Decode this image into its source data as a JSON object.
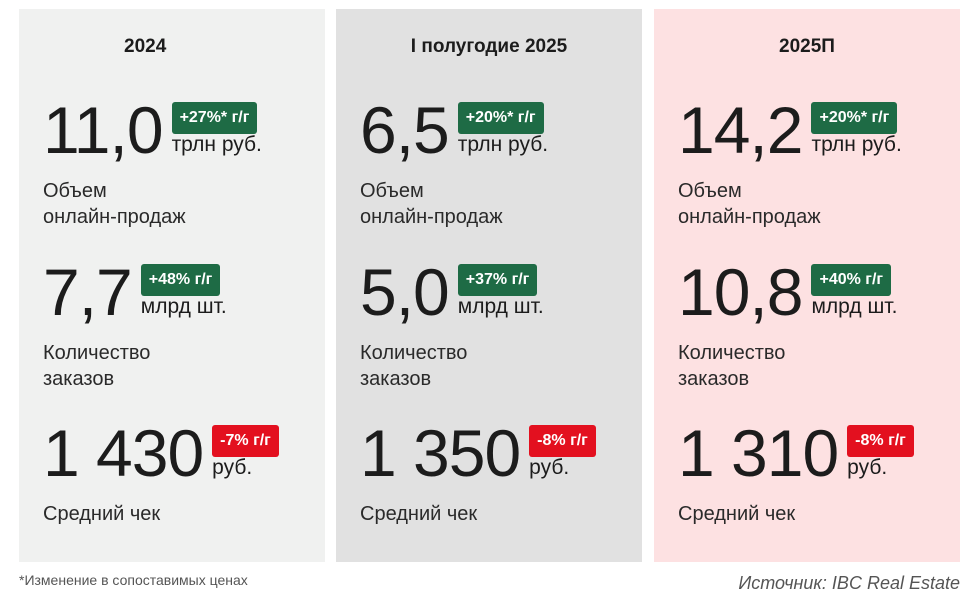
{
  "columns": [
    {
      "title": "2024",
      "metrics": [
        {
          "value": "11,0",
          "change": "+27%* г/г",
          "direction": "up",
          "unit": "трлн руб.",
          "label_line1": "Объем",
          "label_line2": "онлайн-продаж"
        },
        {
          "value": "7,7",
          "change": "+48% г/г",
          "direction": "up",
          "unit": "млрд шт.",
          "label_line1": "Количество",
          "label_line2": "заказов"
        },
        {
          "value": "1 430",
          "change": "-7% г/г",
          "direction": "down",
          "unit": "руб.",
          "label_line1": "Средний чек",
          "label_line2": ""
        }
      ]
    },
    {
      "title": "I полугодие 2025",
      "metrics": [
        {
          "value": "6,5",
          "change": "+20%* г/г",
          "direction": "up",
          "unit": "трлн руб.",
          "label_line1": "Объем",
          "label_line2": "онлайн-продаж"
        },
        {
          "value": "5,0",
          "change": "+37% г/г",
          "direction": "up",
          "unit": "млрд шт.",
          "label_line1": "Количество",
          "label_line2": "заказов"
        },
        {
          "value": "1 350",
          "change": "-8% г/г",
          "direction": "down",
          "unit": "руб.",
          "label_line1": "Средний чек",
          "label_line2": ""
        }
      ]
    },
    {
      "title": "2025П",
      "metrics": [
        {
          "value": "14,2",
          "change": "+20%* г/г",
          "direction": "up",
          "unit": "трлн руб.",
          "label_line1": "Объем",
          "label_line2": "онлайн-продаж"
        },
        {
          "value": "10,8",
          "change": "+40% г/г",
          "direction": "up",
          "unit": "млрд шт.",
          "label_line1": "Количество",
          "label_line2": "заказов"
        },
        {
          "value": "1 310",
          "change": "-8% г/г",
          "direction": "down",
          "unit": "руб.",
          "label_line1": "Средний чек",
          "label_line2": ""
        }
      ]
    }
  ],
  "colors": {
    "up_badge": "#1e6b45",
    "down_badge": "#e3101f",
    "col_2024_bg": "#f0f1f0",
    "col_h1_2025_bg": "#e1e1e1",
    "col_2025f_bg": "#fde1e2"
  },
  "footnote": "*Изменение в сопоставимых ценах",
  "source": "Источник: IBC Real Estate"
}
